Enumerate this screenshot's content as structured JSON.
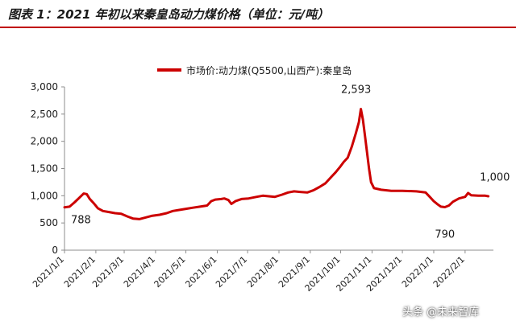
{
  "header": {
    "title": "图表 1：2021 年初以来秦皇岛动力煤价格（单位：元/吨）"
  },
  "colors": {
    "series": "#cc0000",
    "axis": "#8c8c8c",
    "title_rule": "#c00000"
  },
  "watermark": "头条 @未来智库",
  "chart_data": {
    "type": "line",
    "title": "",
    "xlabel": "",
    "ylabel": "",
    "ylim": [
      0,
      3000
    ],
    "yticks": [
      0,
      500,
      1000,
      1500,
      2000,
      2500,
      3000
    ],
    "ytick_labels": [
      "0",
      "500",
      "1,000",
      "1,500",
      "2,000",
      "2,500",
      "3,000"
    ],
    "xlim": [
      "2021-01-01",
      "2022-03-01"
    ],
    "xticks": [
      "2021-01-01",
      "2021-02-01",
      "2021-03-01",
      "2021-04-01",
      "2021-05-01",
      "2021-06-01",
      "2021-07-01",
      "2021-08-01",
      "2021-09-01",
      "2021-10-01",
      "2021-11-01",
      "2021-12-01",
      "2022-01-01",
      "2022-02-01"
    ],
    "xtick_labels": [
      "2021/1/1",
      "2021/2/1",
      "2021/3/1",
      "2021/4/1",
      "2021/5/1",
      "2021/6/1",
      "2021/7/1",
      "2021/8/1",
      "2021/9/1",
      "2021/10/1",
      "2021/11/1",
      "2021/12/1",
      "2022/1/1",
      "2022/2/1"
    ],
    "grid": false,
    "legend": "top-center",
    "series": [
      {
        "name": "市场价:动力煤(Q5500,山西产):秦皇岛",
        "points": [
          [
            "2021-01-01",
            788
          ],
          [
            "2021-01-06",
            800
          ],
          [
            "2021-01-11",
            880
          ],
          [
            "2021-01-16",
            970
          ],
          [
            "2021-01-20",
            1040
          ],
          [
            "2021-01-23",
            1030
          ],
          [
            "2021-01-26",
            940
          ],
          [
            "2021-01-30",
            860
          ],
          [
            "2021-02-03",
            770
          ],
          [
            "2021-02-08",
            720
          ],
          [
            "2021-02-14",
            700
          ],
          [
            "2021-02-20",
            680
          ],
          [
            "2021-02-26",
            670
          ],
          [
            "2021-03-04",
            620
          ],
          [
            "2021-03-10",
            580
          ],
          [
            "2021-03-16",
            570
          ],
          [
            "2021-03-22",
            600
          ],
          [
            "2021-03-28",
            630
          ],
          [
            "2021-04-05",
            650
          ],
          [
            "2021-04-12",
            680
          ],
          [
            "2021-04-18",
            720
          ],
          [
            "2021-04-25",
            740
          ],
          [
            "2021-05-01",
            760
          ],
          [
            "2021-05-08",
            780
          ],
          [
            "2021-05-15",
            800
          ],
          [
            "2021-05-22",
            820
          ],
          [
            "2021-05-26",
            900
          ],
          [
            "2021-05-30",
            930
          ],
          [
            "2021-06-05",
            940
          ],
          [
            "2021-06-08",
            950
          ],
          [
            "2021-06-12",
            920
          ],
          [
            "2021-06-15",
            850
          ],
          [
            "2021-06-19",
            900
          ],
          [
            "2021-06-25",
            940
          ],
          [
            "2021-07-02",
            950
          ],
          [
            "2021-07-10",
            980
          ],
          [
            "2021-07-16",
            1000
          ],
          [
            "2021-07-22",
            990
          ],
          [
            "2021-07-28",
            980
          ],
          [
            "2021-08-04",
            1020
          ],
          [
            "2021-08-10",
            1060
          ],
          [
            "2021-08-16",
            1080
          ],
          [
            "2021-08-22",
            1070
          ],
          [
            "2021-08-29",
            1060
          ],
          [
            "2021-09-04",
            1100
          ],
          [
            "2021-09-10",
            1160
          ],
          [
            "2021-09-16",
            1230
          ],
          [
            "2021-09-22",
            1350
          ],
          [
            "2021-09-26",
            1430
          ],
          [
            "2021-09-30",
            1520
          ],
          [
            "2021-10-04",
            1620
          ],
          [
            "2021-10-08",
            1700
          ],
          [
            "2021-10-12",
            1900
          ],
          [
            "2021-10-16",
            2150
          ],
          [
            "2021-10-19",
            2350
          ],
          [
            "2021-10-21",
            2593
          ],
          [
            "2021-10-23",
            2400
          ],
          [
            "2021-10-25",
            2100
          ],
          [
            "2021-10-27",
            1800
          ],
          [
            "2021-10-29",
            1500
          ],
          [
            "2021-10-31",
            1250
          ],
          [
            "2021-11-03",
            1140
          ],
          [
            "2021-11-10",
            1110
          ],
          [
            "2021-11-20",
            1090
          ],
          [
            "2021-12-01",
            1090
          ],
          [
            "2021-12-15",
            1080
          ],
          [
            "2021-12-24",
            1060
          ],
          [
            "2021-12-28",
            980
          ],
          [
            "2022-01-01",
            900
          ],
          [
            "2022-01-05",
            840
          ],
          [
            "2022-01-08",
            800
          ],
          [
            "2022-01-12",
            790
          ],
          [
            "2022-01-16",
            820
          ],
          [
            "2022-01-20",
            890
          ],
          [
            "2022-01-26",
            950
          ],
          [
            "2022-02-01",
            980
          ],
          [
            "2022-02-04",
            1050
          ],
          [
            "2022-02-07",
            1010
          ],
          [
            "2022-02-14",
            1000
          ],
          [
            "2022-02-21",
            1000
          ],
          [
            "2022-02-24",
            990
          ]
        ]
      }
    ],
    "annotations": [
      {
        "text": "788",
        "x": "2021-01-01",
        "y": 788
      },
      {
        "text": "2,593",
        "x": "2021-10-21",
        "y": 2593
      },
      {
        "text": "790",
        "x": "2022-01-12",
        "y": 790
      },
      {
        "text": "1,000",
        "x": "2022-02-14",
        "y": 1000
      }
    ]
  }
}
